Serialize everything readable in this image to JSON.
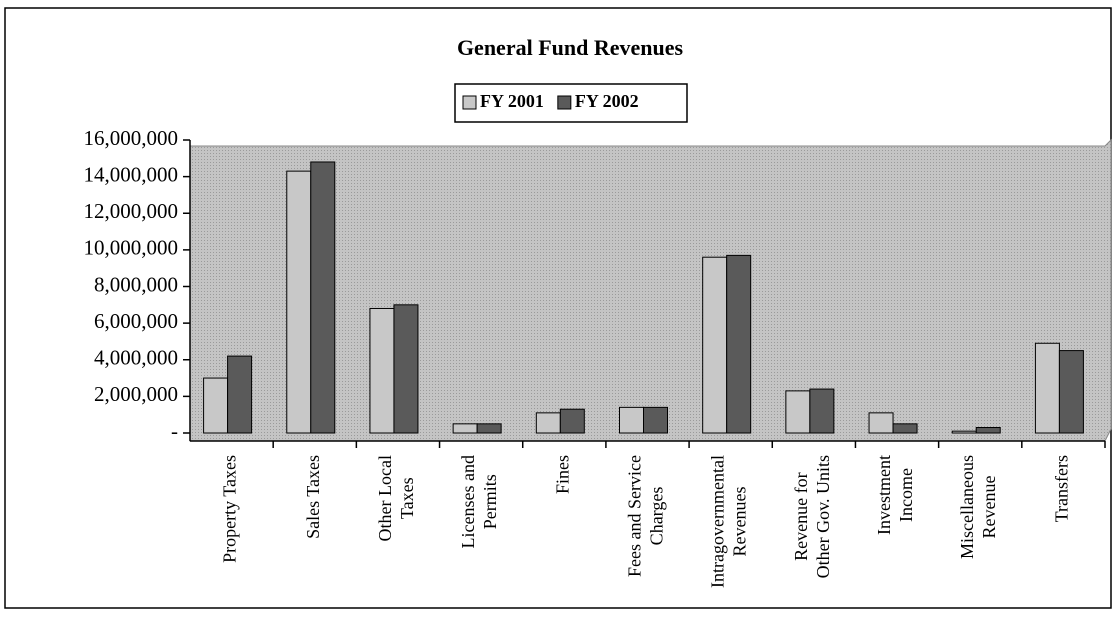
{
  "chart_data": {
    "type": "bar",
    "title": "General Fund Revenues",
    "categories": [
      "Property Taxes",
      "Sales Taxes",
      "Other Local\nTaxes",
      "Licenses and\nPermits",
      "Fines",
      "Fees and Service\nCharges",
      "Intragovernmental\nRevenues",
      "Revenue for\nOther Gov. Units",
      "Investment\nIncome",
      "Miscellaneous\nRevenue",
      "Transfers"
    ],
    "series": [
      {
        "name": "FY 2001",
        "color": "#c8c8c8",
        "values": [
          3000000,
          14300000,
          6800000,
          500000,
          1100000,
          1400000,
          9600000,
          2300000,
          1100000,
          100000,
          4900000
        ]
      },
      {
        "name": "FY 2002",
        "color": "#5a5a5a",
        "values": [
          4200000,
          14800000,
          7000000,
          500000,
          1300000,
          1400000,
          9700000,
          2400000,
          500000,
          300000,
          4500000
        ]
      }
    ],
    "ylim": [
      0,
      16000000
    ],
    "yticks": [
      {
        "value": 0,
        "label": "-"
      },
      {
        "value": 2000000,
        "label": "2,000,000"
      },
      {
        "value": 4000000,
        "label": "4,000,000"
      },
      {
        "value": 6000000,
        "label": "6,000,000"
      },
      {
        "value": 8000000,
        "label": "8,000,000"
      },
      {
        "value": 10000000,
        "label": "10,000,000"
      },
      {
        "value": 12000000,
        "label": "12,000,000"
      },
      {
        "value": 14000000,
        "label": "14,000,000"
      },
      {
        "value": 16000000,
        "label": "16,000,000"
      }
    ],
    "legend": "top",
    "plot_background": "#bdbdbd"
  }
}
